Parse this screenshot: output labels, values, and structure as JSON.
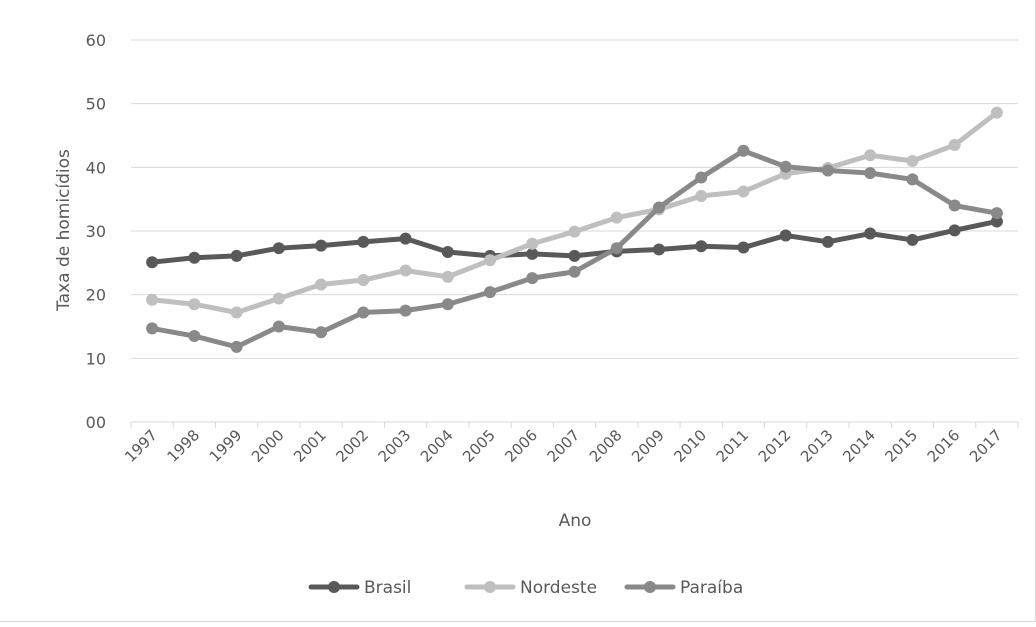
{
  "chart_data": {
    "type": "line",
    "title": "",
    "xlabel": "Ano",
    "ylabel": "Taxa de homicídios",
    "ylim": [
      0,
      60
    ],
    "yticks": [
      "00",
      "10",
      "20",
      "30",
      "40",
      "50",
      "60"
    ],
    "categories": [
      "1997",
      "1998",
      "1999",
      "2000",
      "2001",
      "2002",
      "2003",
      "2004",
      "2005",
      "2006",
      "2007",
      "2008",
      "2009",
      "2010",
      "2011",
      "2012",
      "2013",
      "2014",
      "2015",
      "2016",
      "2017"
    ],
    "grid": true,
    "legend_position": "bottom",
    "series": [
      {
        "name": "Brasil",
        "color": "#595959",
        "values": [
          25.1,
          25.8,
          26.1,
          27.3,
          27.7,
          28.3,
          28.8,
          26.7,
          26.1,
          26.4,
          26.1,
          26.8,
          27.1,
          27.6,
          27.4,
          29.3,
          28.3,
          29.6,
          28.6,
          30.1,
          31.5
        ]
      },
      {
        "name": "Nordeste",
        "color": "#bfbfbf",
        "values": [
          19.2,
          18.5,
          17.2,
          19.4,
          21.6,
          22.3,
          23.8,
          22.8,
          25.4,
          28.0,
          29.9,
          32.1,
          33.4,
          35.5,
          36.2,
          39.0,
          39.9,
          41.9,
          41.0,
          43.5,
          48.6
        ]
      },
      {
        "name": "Paraíba",
        "color": "#898989",
        "values": [
          14.7,
          13.5,
          11.8,
          15.0,
          14.1,
          17.2,
          17.5,
          18.5,
          20.4,
          22.6,
          23.6,
          27.3,
          33.7,
          38.4,
          42.6,
          40.1,
          39.5,
          39.1,
          38.1,
          34.0,
          32.8
        ]
      }
    ]
  }
}
